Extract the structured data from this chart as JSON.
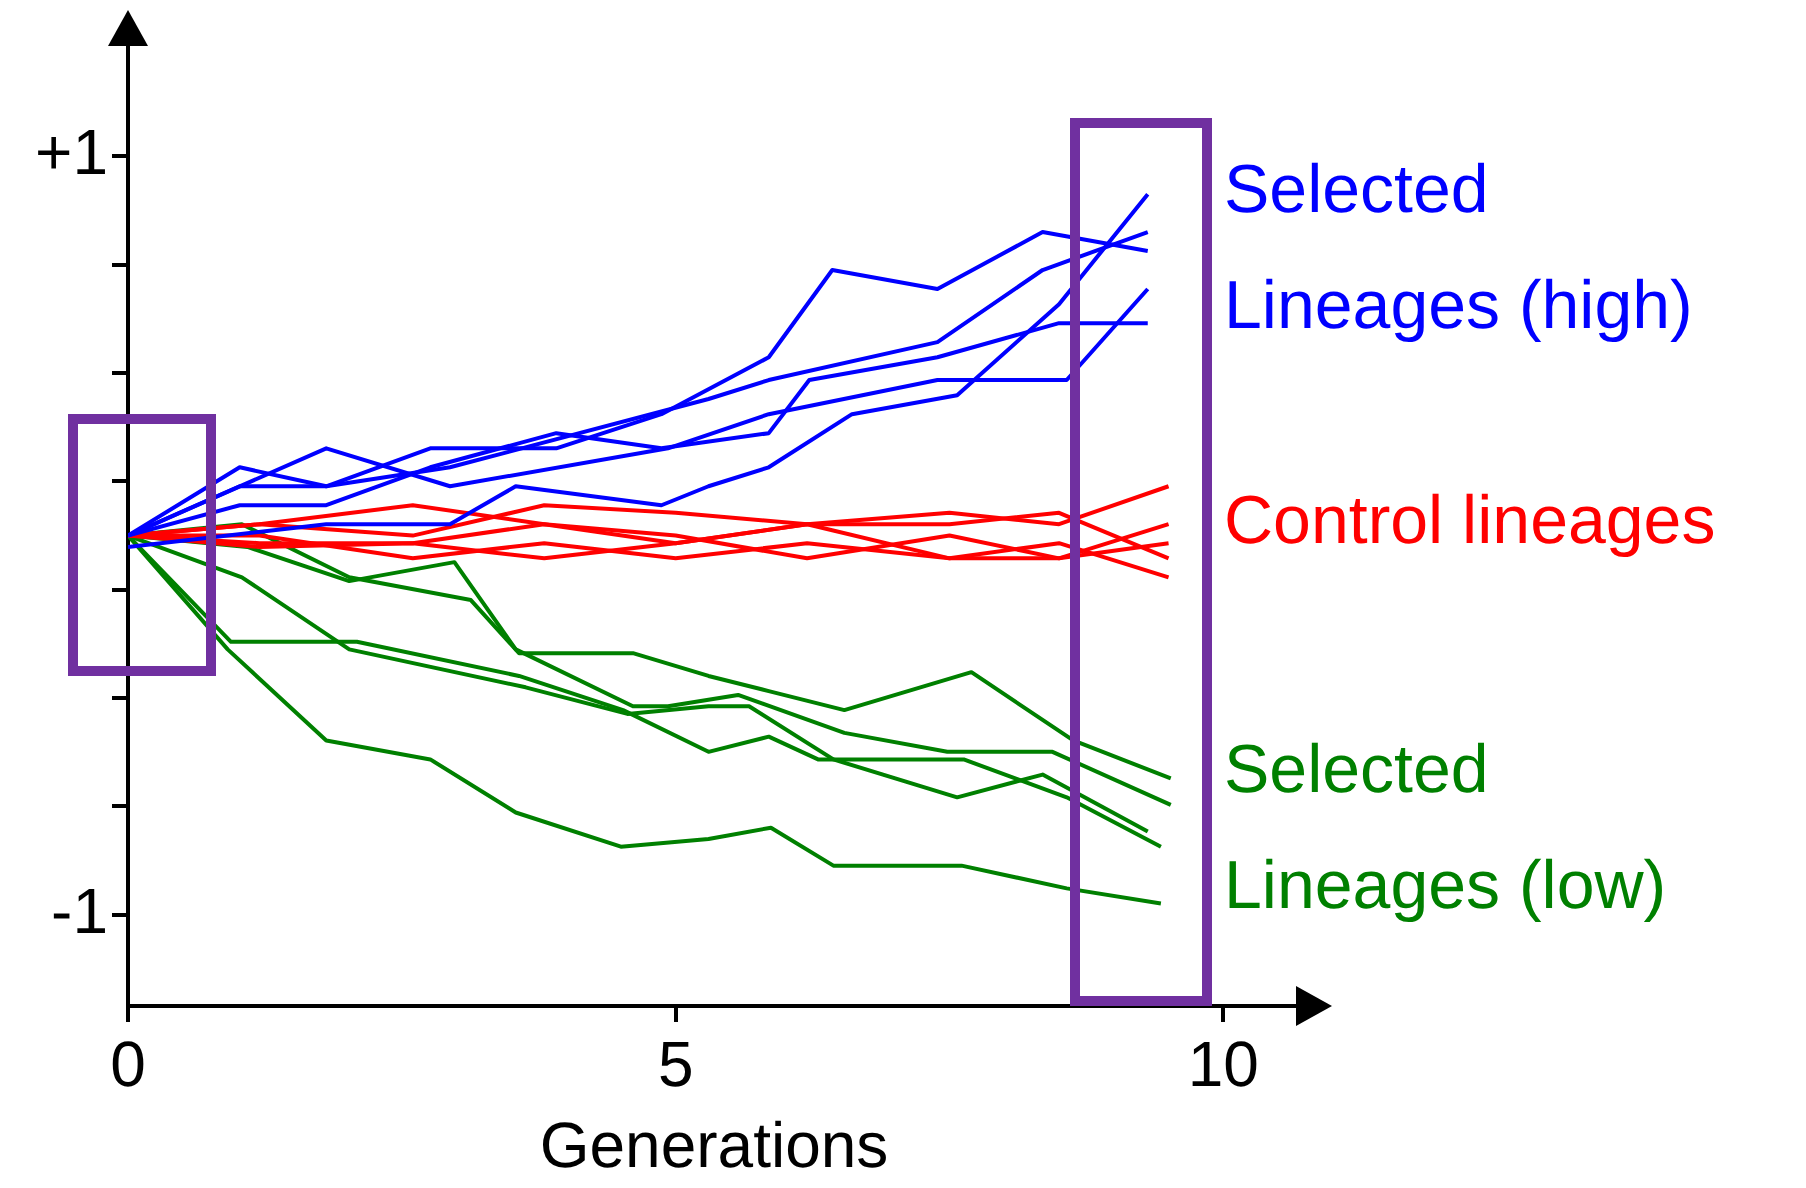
{
  "chart_data": {
    "type": "line",
    "xlabel": "Generations",
    "xlim": [
      0,
      10.7
    ],
    "xticks": [
      0,
      5,
      10
    ],
    "ylim": [
      -1.24,
      1.3
    ],
    "yticks": [
      {
        "value": 1,
        "label": "+1"
      },
      {
        "value": 0.714,
        "label": null
      },
      {
        "value": 0.429,
        "label": null
      },
      {
        "value": 0.143,
        "label": null
      },
      {
        "value": -0.143,
        "label": null
      },
      {
        "value": -0.429,
        "label": null
      },
      {
        "value": -0.714,
        "label": null
      },
      {
        "value": -1,
        "label": "-1"
      }
    ],
    "legend": false,
    "grid": false,
    "series": [
      {
        "name": "Selected Lineages (high)",
        "color": "#0000ff",
        "x": [
          0,
          1.02,
          1.81,
          2.76,
          3.91,
          4.87,
          5.85,
          6.43,
          7.39,
          8.35,
          9.31
        ],
        "values": [
          0,
          0.18,
          0.13,
          0.23,
          0.23,
          0.32,
          0.47,
          0.7,
          0.65,
          0.8,
          0.75
        ]
      },
      {
        "color": "#0000ff",
        "x": [
          0,
          1.02,
          1.81,
          2.94,
          5.3,
          5.85,
          7.39,
          8.35,
          9.31
        ],
        "values": [
          0,
          0.13,
          0.13,
          0.18,
          0.36,
          0.41,
          0.51,
          0.7,
          0.8
        ]
      },
      {
        "color": "#0000ff",
        "x": [
          0,
          1.02,
          1.81,
          2.76,
          3.91,
          4.87,
          5.85,
          6.22,
          7.39,
          8.5,
          9.31
        ],
        "values": [
          0,
          0.08,
          0.08,
          0.18,
          0.27,
          0.23,
          0.27,
          0.41,
          0.47,
          0.56,
          0.56
        ]
      },
      {
        "color": "#0000ff",
        "x": [
          0,
          1.81,
          2.94,
          4.93,
          5.85,
          7.39,
          8.57,
          9.31
        ],
        "values": [
          0,
          0.23,
          0.13,
          0.23,
          0.32,
          0.41,
          0.41,
          0.65
        ]
      },
      {
        "color": "#0000ff",
        "x": [
          0,
          1.81,
          2.94,
          3.54,
          4.87,
          5.3,
          5.85,
          6.61,
          7.57,
          8.5,
          9.31
        ],
        "values": [
          -0.03,
          0.03,
          0.03,
          0.13,
          0.08,
          0.13,
          0.18,
          0.32,
          0.37,
          0.61,
          0.9
        ]
      },
      {
        "color": "#ff0000",
        "x": [
          0,
          1.2,
          2.6,
          3.8,
          5.0,
          6.2,
          7.5,
          8.5,
          9.5
        ],
        "values": [
          0,
          0.03,
          0.0,
          0.08,
          0.06,
          0.03,
          0.06,
          0.03,
          0.13
        ]
      },
      {
        "color": "#ff0000",
        "x": [
          0,
          1.2,
          2.6,
          3.8,
          5.0,
          6.2,
          7.5,
          8.5,
          9.5
        ],
        "values": [
          0,
          0.03,
          0.08,
          0.03,
          -0.02,
          0.03,
          0.03,
          0.06,
          -0.06
        ]
      },
      {
        "name": "Control lineages",
        "color": "#ff0000",
        "x": [
          0,
          1.2,
          2.6,
          3.8,
          5.0,
          6.2,
          7.5,
          8.5,
          9.5
        ],
        "values": [
          0,
          -0.02,
          -0.02,
          0.03,
          0.0,
          -0.06,
          0.0,
          -0.06,
          0.03
        ]
      },
      {
        "color": "#ff0000",
        "x": [
          0,
          1.2,
          2.6,
          3.8,
          5.0,
          6.2,
          7.5,
          8.5,
          9.5
        ],
        "values": [
          0,
          0.0,
          -0.06,
          -0.02,
          -0.06,
          -0.02,
          -0.06,
          -0.06,
          -0.02
        ]
      },
      {
        "color": "#ff0000",
        "x": [
          0,
          1.2,
          2.6,
          3.8,
          5.0,
          6.2,
          7.5,
          8.5,
          9.5
        ],
        "values": [
          0,
          -0.03,
          -0.02,
          -0.06,
          -0.02,
          0.03,
          -0.06,
          -0.02,
          -0.11
        ]
      },
      {
        "color": "#008000",
        "x": [
          0,
          0.91,
          1.81,
          2.76,
          3.54,
          4.5,
          5.3,
          5.87,
          6.44,
          7.61,
          8.57,
          9.43
        ],
        "values": [
          0,
          -0.3,
          -0.54,
          -0.59,
          -0.73,
          -0.82,
          -0.8,
          -0.77,
          -0.87,
          -0.87,
          -0.93,
          -0.97
        ]
      },
      {
        "color": "#008000",
        "x": [
          0,
          0.94,
          2.09,
          3.57,
          4.52,
          5.3,
          5.85,
          6.3,
          7.63,
          8.57,
          9.43
        ],
        "values": [
          0,
          -0.28,
          -0.28,
          -0.37,
          -0.46,
          -0.57,
          -0.53,
          -0.59,
          -0.59,
          -0.69,
          -0.82
        ]
      },
      {
        "name": "Selected Lineages (low)",
        "color": "#008000",
        "x": [
          0,
          1.04,
          2.02,
          3.63,
          4.56,
          5.3,
          5.67,
          6.44,
          7.57,
          8.35,
          9.31
        ],
        "values": [
          0,
          -0.11,
          -0.3,
          -0.4,
          -0.47,
          -0.45,
          -0.45,
          -0.59,
          -0.69,
          -0.63,
          -0.78
        ]
      },
      {
        "color": "#008000",
        "x": [
          0,
          1.04,
          2.02,
          3.13,
          3.57,
          4.61,
          5.3,
          5.85,
          6.54,
          7.7,
          8.63,
          9.52
        ],
        "values": [
          0,
          0.03,
          -0.11,
          -0.17,
          -0.31,
          -0.31,
          -0.37,
          -0.41,
          -0.46,
          -0.36,
          -0.54,
          -0.64
        ]
      },
      {
        "color": "#008000",
        "x": [
          0,
          1.09,
          2.02,
          2.98,
          3.54,
          4.61,
          4.93,
          5.57,
          6.54,
          7.48,
          8.44,
          9.52
        ],
        "values": [
          0,
          -0.03,
          -0.12,
          -0.07,
          -0.3,
          -0.45,
          -0.45,
          -0.42,
          -0.52,
          -0.57,
          -0.57,
          -0.71
        ]
      }
    ]
  }
}
